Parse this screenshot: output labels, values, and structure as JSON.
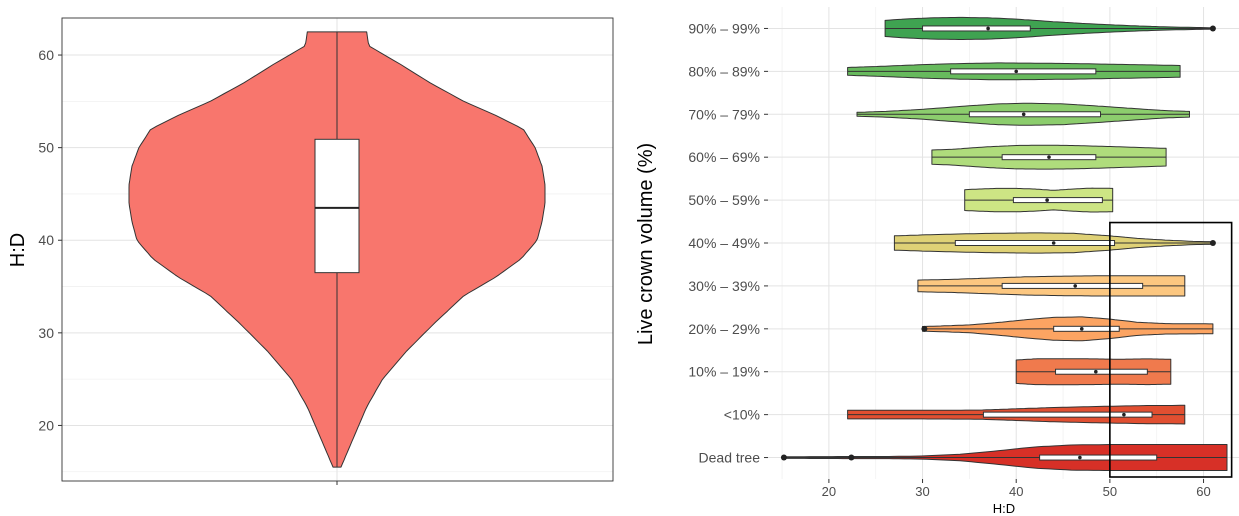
{
  "chart_data": [
    {
      "type": "violin",
      "title": "",
      "xlabel": "",
      "ylabel": "H:D",
      "ylim": [
        14,
        64
      ],
      "yticks": [
        20,
        30,
        40,
        50,
        60
      ],
      "grid": true,
      "fill_color": "#f8766d",
      "series": [
        {
          "min": 15.5,
          "max": 62.5,
          "q1": 36.5,
          "median": 43.5,
          "q3": 50.9,
          "density": [
            [
              15.5,
              0.04
            ],
            [
              16.5,
              0.08
            ],
            [
              18,
              0.14
            ],
            [
              20,
              0.22
            ],
            [
              22,
              0.3
            ],
            [
              25,
              0.46
            ],
            [
              28,
              0.7
            ],
            [
              31,
              0.98
            ],
            [
              34,
              1.28
            ],
            [
              36,
              1.6
            ],
            [
              38,
              1.86
            ],
            [
              40,
              2.02
            ],
            [
              42,
              2.07
            ],
            [
              44,
              2.1
            ],
            [
              46,
              2.1
            ],
            [
              48,
              2.07
            ],
            [
              50,
              2.0
            ],
            [
              52,
              1.88
            ],
            [
              53.5,
              1.6
            ],
            [
              55,
              1.28
            ],
            [
              57,
              0.94
            ],
            [
              59,
              0.64
            ],
            [
              61,
              0.32
            ],
            [
              62.5,
              0.3
            ]
          ]
        }
      ]
    },
    {
      "type": "violin",
      "orientation": "horizontal",
      "title": "",
      "xlabel": "H:D",
      "ylabel": "Live crown volume (%)",
      "xlim": [
        13.5,
        64
      ],
      "xticks": [
        20,
        30,
        40,
        50,
        60
      ],
      "categories": [
        "Dead tree",
        "<10%",
        "10% – 19%",
        "20% – 29%",
        "30% – 39%",
        "40% – 49%",
        "50% – 59%",
        "60% – 69%",
        "70% – 79%",
        "80% – 89%",
        "90% – 99%"
      ],
      "grid": true,
      "highlight_box": {
        "x_from": 50,
        "x_to": 63,
        "from_category": "Dead tree",
        "to_category": "40% – 49%"
      },
      "series": [
        {
          "name": "Dead tree",
          "color": "#d73027",
          "min": 15,
          "max": 62.5,
          "q1": 42.5,
          "median": 46.8,
          "q3": 55,
          "outliers": [
            15.2,
            22.4
          ],
          "density": [
            [
              15,
              0.06
            ],
            [
              18,
              0.07
            ],
            [
              22.4,
              0.08
            ],
            [
              26,
              0.08
            ],
            [
              30,
              0.12
            ],
            [
              34,
              0.25
            ],
            [
              38,
              0.52
            ],
            [
              42,
              0.82
            ],
            [
              46,
              0.97
            ],
            [
              50,
              1.0
            ],
            [
              54,
              1.0
            ],
            [
              58,
              1.0
            ],
            [
              62.5,
              1.0
            ]
          ]
        },
        {
          "name": "<10%",
          "color": "#e14f31",
          "min": 22,
          "max": 58,
          "q1": 36.5,
          "median": 51.5,
          "q3": 54.5,
          "outliers": [],
          "density": [
            [
              22,
              0.33
            ],
            [
              30,
              0.33
            ],
            [
              36,
              0.35
            ],
            [
              40,
              0.45
            ],
            [
              44,
              0.55
            ],
            [
              48,
              0.62
            ],
            [
              51,
              0.66
            ],
            [
              54,
              0.7
            ],
            [
              56,
              0.7
            ],
            [
              58,
              0.72
            ]
          ]
        },
        {
          "name": "10% – 19%",
          "color": "#f07a4d",
          "min": 40,
          "max": 56.5,
          "q1": 44.2,
          "median": 48.5,
          "q3": 54,
          "outliers": [],
          "density": [
            [
              40,
              0.9
            ],
            [
              42,
              0.99
            ],
            [
              45,
              1.0
            ],
            [
              48,
              0.99
            ],
            [
              51,
              0.96
            ],
            [
              54,
              0.99
            ],
            [
              56.5,
              0.96
            ]
          ]
        },
        {
          "name": "20% – 29%",
          "color": "#fca462",
          "min": 30,
          "max": 61,
          "q1": 44,
          "median": 47,
          "q3": 51,
          "outliers": [
            30.2
          ],
          "density": [
            [
              30,
              0.18
            ],
            [
              32,
              0.22
            ],
            [
              35,
              0.3
            ],
            [
              38,
              0.48
            ],
            [
              41,
              0.7
            ],
            [
              44,
              0.88
            ],
            [
              47,
              0.92
            ],
            [
              50,
              0.75
            ],
            [
              53,
              0.5
            ],
            [
              56,
              0.4
            ],
            [
              61,
              0.38
            ]
          ]
        },
        {
          "name": "30% – 39%",
          "color": "#fcc780",
          "min": 29.5,
          "max": 58,
          "q1": 38.5,
          "median": 46.3,
          "q3": 53.5,
          "outliers": [],
          "density": [
            [
              29.5,
              0.45
            ],
            [
              33,
              0.5
            ],
            [
              37,
              0.6
            ],
            [
              41,
              0.7
            ],
            [
              45,
              0.75
            ],
            [
              49,
              0.78
            ],
            [
              52,
              0.78
            ],
            [
              55,
              0.78
            ],
            [
              58,
              0.78
            ]
          ]
        },
        {
          "name": "40% – 49%",
          "color": "#dfd176",
          "min": 27,
          "max": 61,
          "q1": 33.5,
          "median": 44,
          "q3": 50.5,
          "outliers": [
            61
          ],
          "density": [
            [
              27,
              0.55
            ],
            [
              30,
              0.62
            ],
            [
              34,
              0.7
            ],
            [
              38,
              0.75
            ],
            [
              42,
              0.78
            ],
            [
              46,
              0.75
            ],
            [
              50,
              0.55
            ],
            [
              53,
              0.35
            ],
            [
              56,
              0.22
            ],
            [
              59,
              0.12
            ],
            [
              61,
              0.1
            ]
          ]
        },
        {
          "name": "50% – 59%",
          "color": "#cde584",
          "min": 34.5,
          "max": 50.3,
          "q1": 39.7,
          "median": 43.3,
          "q3": 49.2,
          "outliers": [],
          "density": [
            [
              34.5,
              0.8
            ],
            [
              36,
              0.85
            ],
            [
              38,
              0.9
            ],
            [
              40,
              0.9
            ],
            [
              42,
              0.85
            ],
            [
              44,
              0.75
            ],
            [
              46,
              0.85
            ],
            [
              48,
              0.92
            ],
            [
              50.3,
              0.9
            ]
          ]
        },
        {
          "name": "60% – 69%",
          "color": "#afdc7c",
          "min": 31,
          "max": 56,
          "q1": 38.5,
          "median": 43.5,
          "q3": 48.5,
          "outliers": [],
          "density": [
            [
              31,
              0.55
            ],
            [
              33,
              0.6
            ],
            [
              37,
              0.8
            ],
            [
              40,
              0.9
            ],
            [
              43,
              0.92
            ],
            [
              46,
              0.9
            ],
            [
              50,
              0.82
            ],
            [
              53,
              0.75
            ],
            [
              56,
              0.68
            ]
          ]
        },
        {
          "name": "70% – 79%",
          "color": "#8ccd6d",
          "min": 23,
          "max": 58.5,
          "q1": 35,
          "median": 40.8,
          "q3": 49,
          "outliers": [],
          "density": [
            [
              23,
              0.15
            ],
            [
              26,
              0.22
            ],
            [
              30,
              0.38
            ],
            [
              34,
              0.6
            ],
            [
              38,
              0.8
            ],
            [
              41,
              0.85
            ],
            [
              45,
              0.8
            ],
            [
              49,
              0.62
            ],
            [
              53,
              0.42
            ],
            [
              56,
              0.28
            ],
            [
              58.5,
              0.22
            ]
          ]
        },
        {
          "name": "80% – 89%",
          "color": "#67ba5d",
          "min": 22,
          "max": 57.5,
          "q1": 33,
          "median": 40,
          "q3": 48.5,
          "outliers": [],
          "density": [
            [
              22,
              0.3
            ],
            [
              26,
              0.4
            ],
            [
              30,
              0.52
            ],
            [
              34,
              0.6
            ],
            [
              38,
              0.65
            ],
            [
              42,
              0.63
            ],
            [
              46,
              0.6
            ],
            [
              50,
              0.55
            ],
            [
              54,
              0.5
            ],
            [
              57.5,
              0.45
            ]
          ]
        },
        {
          "name": "90% – 99%",
          "color": "#3fa351",
          "min": 26,
          "max": 61,
          "q1": 30,
          "median": 37,
          "q3": 41.5,
          "outliers": [
            61
          ],
          "density": [
            [
              26,
              0.62
            ],
            [
              28,
              0.72
            ],
            [
              31,
              0.82
            ],
            [
              34,
              0.85
            ],
            [
              37,
              0.82
            ],
            [
              40,
              0.72
            ],
            [
              44,
              0.52
            ],
            [
              48,
              0.35
            ],
            [
              52,
              0.22
            ],
            [
              56,
              0.12
            ],
            [
              59,
              0.08
            ],
            [
              61,
              0.05
            ]
          ]
        }
      ]
    }
  ]
}
